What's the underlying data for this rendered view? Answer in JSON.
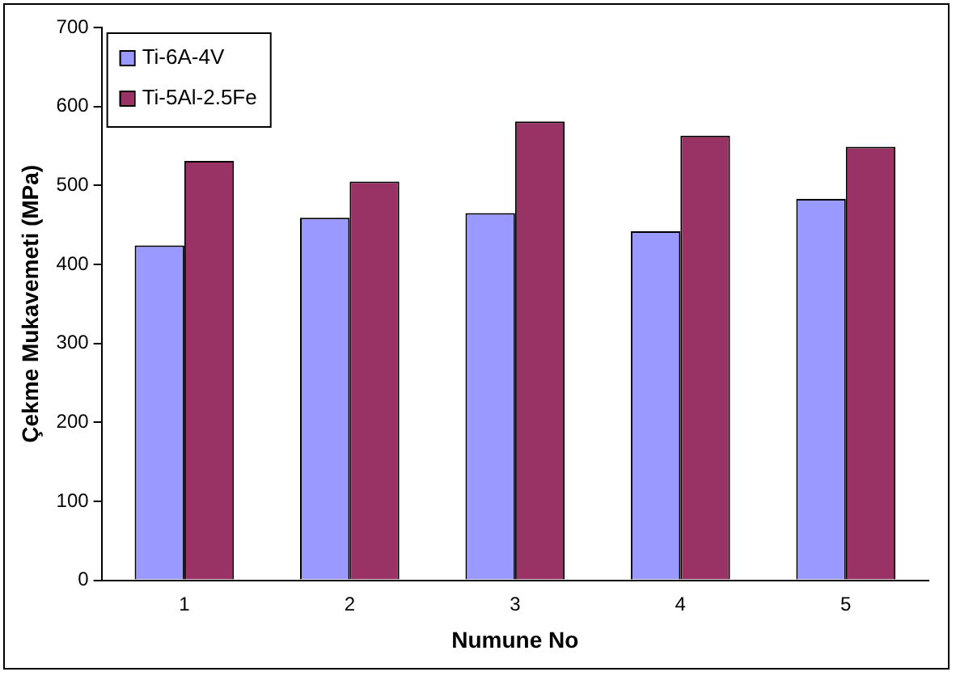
{
  "chart_data": {
    "type": "bar",
    "xlabel": "Numune No",
    "ylabel": "Çekme Mukavemeti (MPa)",
    "categories": [
      "1",
      "2",
      "3",
      "4",
      "5"
    ],
    "series": [
      {
        "name": "Ti-6A-4V",
        "color": "#9999ff",
        "values": [
          424,
          459,
          465,
          442,
          483
        ]
      },
      {
        "name": "Ti-5Al-2.5Fe",
        "color": "#993366",
        "values": [
          531,
          505,
          581,
          563,
          549
        ]
      }
    ],
    "ylim": [
      0,
      700
    ],
    "yticks": [
      0,
      100,
      200,
      300,
      400,
      500,
      600,
      700
    ],
    "grid": false,
    "legend": "top left"
  }
}
